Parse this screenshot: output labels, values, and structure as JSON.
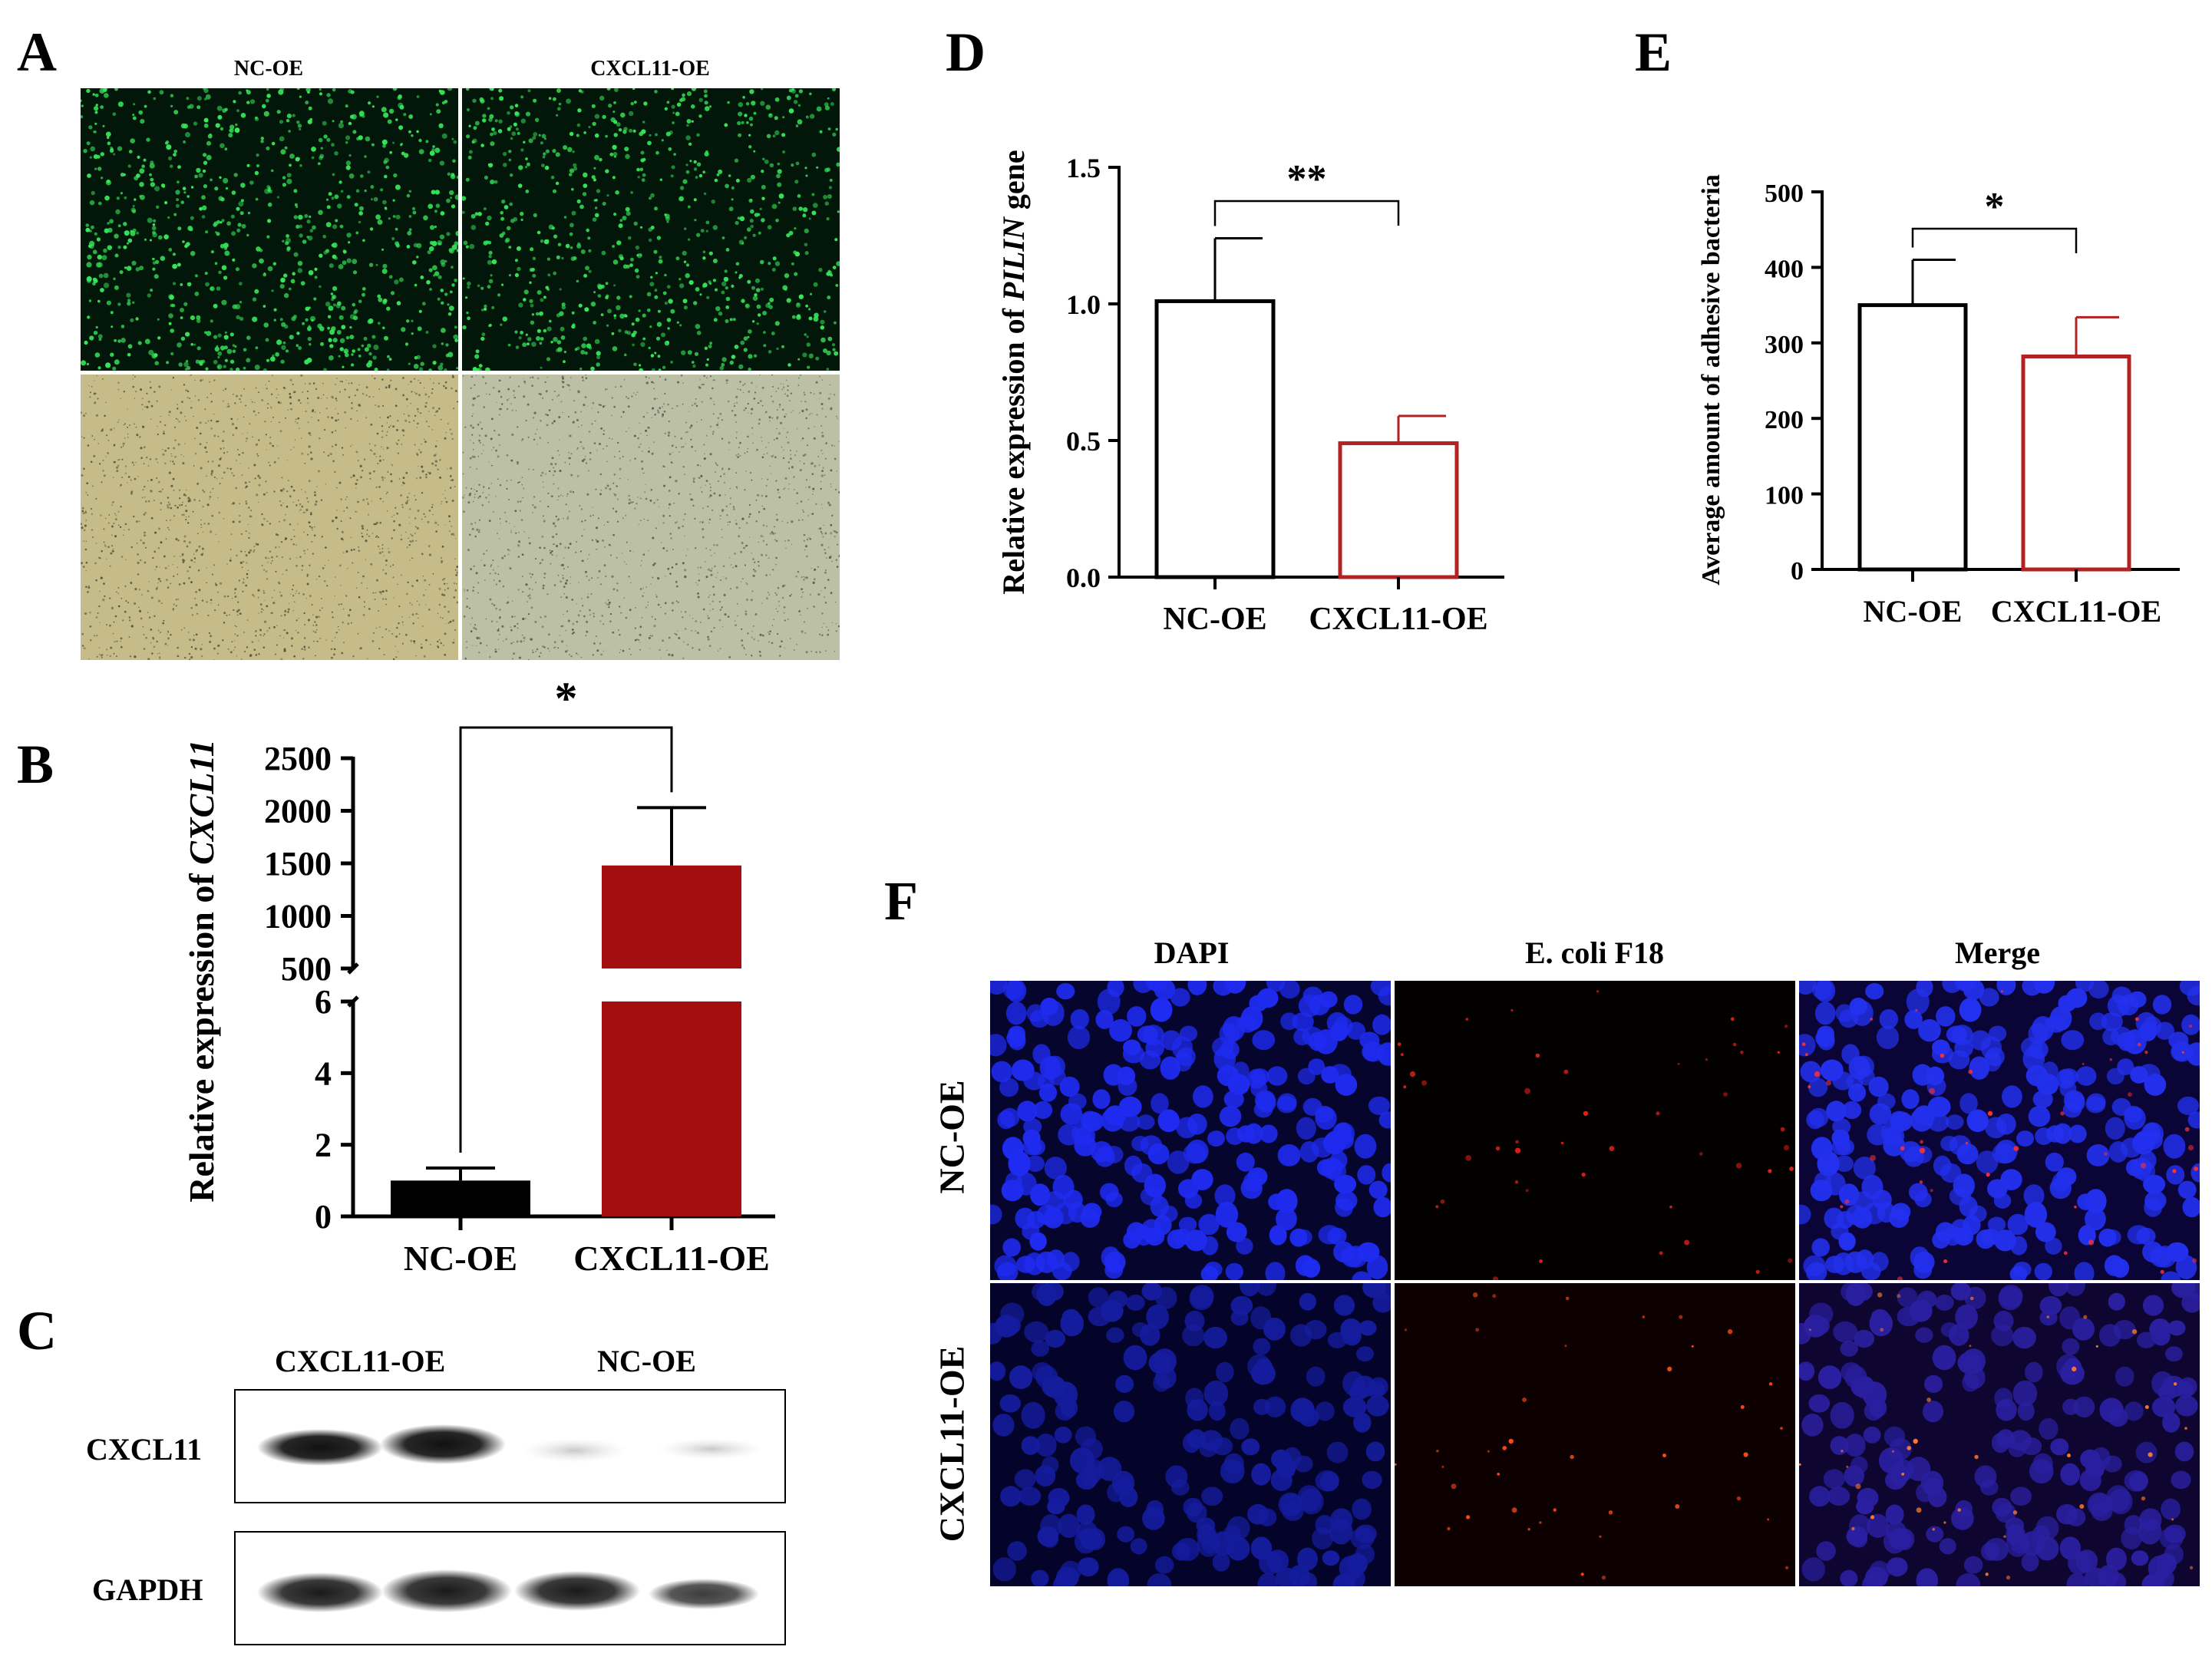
{
  "panels": {
    "A": {
      "letter": "A",
      "columns": [
        "NC-OE",
        "CXCL11-OE"
      ]
    },
    "B": {
      "letter": "B",
      "ylabel_prefix": "Relative expression of ",
      "ylabel_gene": "CXCL11",
      "significance": "*"
    },
    "C": {
      "letter": "C",
      "lane_groups": [
        "CXCL11-OE",
        "NC-OE"
      ],
      "rows": [
        "CXCL11",
        "GAPDH"
      ]
    },
    "D": {
      "letter": "D",
      "ylabel_prefix": "Relative expression of ",
      "ylabel_gene": "PILIN",
      "ylabel_suffix": " gene",
      "significance": "**"
    },
    "E": {
      "letter": "E",
      "ylabel": "Average amount of adhesive bacteria",
      "significance": "*"
    },
    "F": {
      "letter": "F",
      "columns": [
        "DAPI",
        "E. coli F18",
        "Merge"
      ],
      "rows": [
        "NC-OE",
        "CXCL11-OE"
      ]
    }
  },
  "colors": {
    "nc_bar": "#000000",
    "cxcl11_bar": "#a50e0e",
    "outline_red": "#b22222"
  },
  "chart_data": [
    {
      "id": "B",
      "type": "bar",
      "categories": [
        "NC-OE",
        "CXCL11-OE"
      ],
      "values": [
        1.0,
        1480
      ],
      "errors": [
        0.35,
        550
      ],
      "broken_axis": true,
      "lower_ylim": [
        0,
        6
      ],
      "upper_ylim": [
        500,
        2500
      ],
      "lower_ticks": [
        "0",
        "2",
        "4",
        "6"
      ],
      "upper_ticks": [
        "500",
        "1000",
        "1500",
        "2000",
        "2500"
      ],
      "ylabel": "Relative expression of CXCL11",
      "style": "filled"
    },
    {
      "id": "D",
      "type": "bar",
      "categories": [
        "NC-OE",
        "CXCL11-OE"
      ],
      "values": [
        1.01,
        0.49
      ],
      "errors": [
        0.23,
        0.1
      ],
      "ylim": [
        0,
        1.5
      ],
      "ticks": [
        "0.0",
        "0.5",
        "1.0",
        "1.5"
      ],
      "ylabel": "Relative expression of PILIN gene",
      "style": "outline"
    },
    {
      "id": "E",
      "type": "bar",
      "categories": [
        "NC-OE",
        "CXCL11-OE"
      ],
      "values": [
        350,
        282
      ],
      "errors": [
        60,
        52
      ],
      "ylim": [
        0,
        500
      ],
      "ticks": [
        "0",
        "100",
        "200",
        "300",
        "400",
        "500"
      ],
      "ylabel": "Average amount of adhesive bacteria",
      "style": "outline"
    }
  ]
}
